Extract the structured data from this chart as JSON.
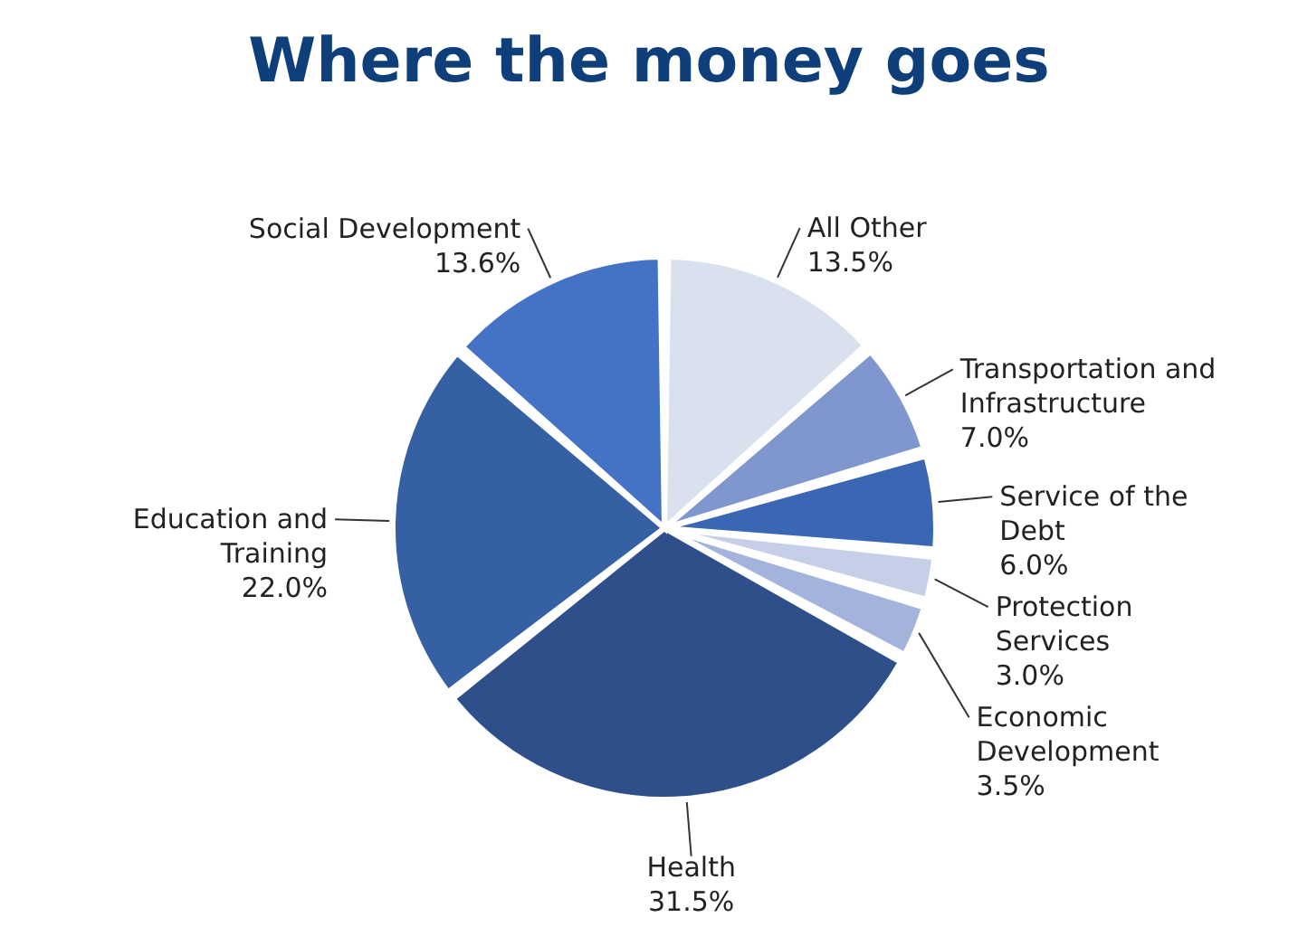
{
  "chart_data": {
    "type": "pie",
    "title": "Where the money goes",
    "categories": [
      "All Other",
      "Transportation and Infrastructure",
      "Service of the Debt",
      "Protection Services",
      "Economic Development",
      "Health",
      "Education and Training",
      "Social Development"
    ],
    "values": [
      13.5,
      7.0,
      6.0,
      3.0,
      3.5,
      31.5,
      22.0,
      13.6
    ],
    "value_labels": [
      "13.5%",
      "7.0%",
      "6.0%",
      "3.0%",
      "3.5%",
      "31.5%",
      "22.0%",
      "13.6%"
    ],
    "colors": [
      "#dae1ee",
      "#7f96cf",
      "#3a66b4",
      "#c5cfe8",
      "#a3b3dc",
      "#2f4f8a",
      "#3560a4",
      "#4472c4"
    ]
  }
}
